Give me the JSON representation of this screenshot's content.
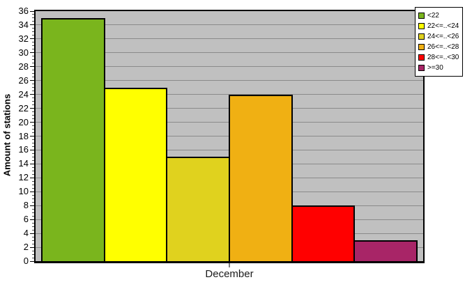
{
  "chart_data": {
    "type": "bar",
    "title": "",
    "xlabel": "December",
    "ylabel": "Amount of stations",
    "ylim": [
      0,
      36
    ],
    "ytick_step": 2,
    "yticks": [
      36,
      34,
      32,
      30,
      28,
      26,
      24,
      22,
      20,
      18,
      16,
      14,
      12,
      10,
      8,
      6,
      4,
      2,
      0
    ],
    "grid": "horizontal",
    "legend_position": "top-right",
    "categories": [
      "<22",
      "22<=..<24",
      "24<=..<26",
      "26<=..<28",
      "28<=..<30",
      ">=30"
    ],
    "values": [
      35,
      25,
      15,
      24,
      8,
      3
    ],
    "colors": [
      "#7AB51D",
      "#FFFF00",
      "#E0D21E",
      "#F0B013",
      "#FF0000",
      "#A82567"
    ]
  },
  "colors": {
    "page_bg": "#FFFFFF",
    "plot_bg": "#C0C0C0",
    "grid": "#8A8A8A",
    "axis": "#000000"
  }
}
